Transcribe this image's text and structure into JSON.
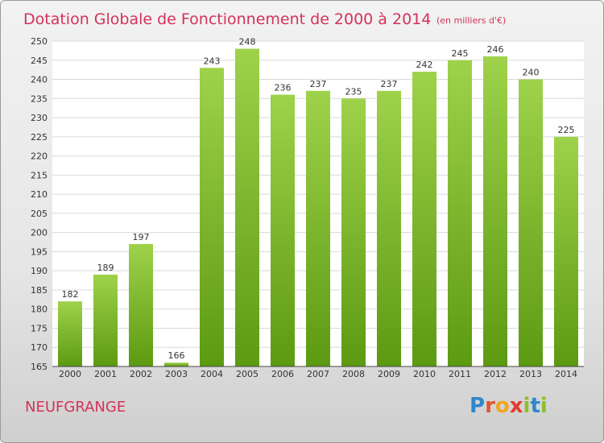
{
  "chart_data": {
    "type": "bar",
    "title": "Dotation Globale de Fonctionnement de 2000 à 2014",
    "unit_label": "(en milliers d'€)",
    "categories": [
      "2000",
      "2001",
      "2002",
      "2003",
      "2004",
      "2005",
      "2006",
      "2007",
      "2008",
      "2009",
      "2010",
      "2011",
      "2012",
      "2013",
      "2014"
    ],
    "values": [
      182,
      189,
      197,
      166,
      243,
      248,
      236,
      237,
      235,
      237,
      242,
      245,
      246,
      240,
      225
    ],
    "ylim": [
      165,
      250
    ],
    "yticks": [
      165,
      170,
      175,
      180,
      185,
      190,
      195,
      200,
      205,
      210,
      215,
      220,
      225,
      230,
      235,
      240,
      245,
      250
    ],
    "grid": true,
    "bar_color_top": "#9ed24a",
    "bar_color_bottom": "#5c9a12"
  },
  "footer": {
    "commune": "NEUFGRANGE",
    "logo": "Proxiti"
  }
}
